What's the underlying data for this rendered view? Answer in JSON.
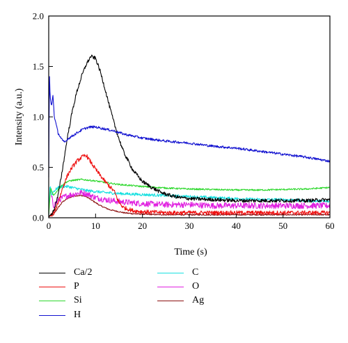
{
  "chart_data": {
    "type": "line",
    "xlabel": "Time (s)",
    "ylabel": "Intensity (a.u.)",
    "xlim": [
      0,
      60
    ],
    "ylim": [
      0,
      2.0
    ],
    "x_ticks": [
      0,
      10,
      20,
      30,
      40,
      50,
      60
    ],
    "y_ticks": [
      0.0,
      0.5,
      1.0,
      1.5,
      2.0
    ],
    "x_tick_labels": [
      "0",
      "10",
      "20",
      "30",
      "40",
      "50",
      "60"
    ],
    "y_tick_labels": [
      "0.0",
      "0.5",
      "1.0",
      "1.5",
      "2.0"
    ],
    "grid": false,
    "legend_position": "bottom",
    "series": [
      {
        "name": "Ca/2",
        "color": "#000000",
        "x": [
          0,
          1,
          2,
          3,
          4,
          5,
          6,
          7,
          8,
          9,
          10,
          11,
          12,
          13,
          14,
          15,
          16,
          18,
          20,
          22,
          24,
          26,
          28,
          30,
          35,
          40,
          45,
          50,
          55,
          60
        ],
        "y": [
          0.01,
          0.06,
          0.22,
          0.5,
          0.8,
          1.05,
          1.25,
          1.4,
          1.52,
          1.6,
          1.58,
          1.45,
          1.28,
          1.1,
          0.93,
          0.78,
          0.65,
          0.47,
          0.36,
          0.3,
          0.25,
          0.22,
          0.2,
          0.19,
          0.18,
          0.17,
          0.17,
          0.17,
          0.17,
          0.18
        ]
      },
      {
        "name": "P",
        "color": "#ee1111",
        "x": [
          0,
          1,
          2,
          3,
          4,
          5,
          6,
          7,
          8,
          9,
          10,
          11,
          12,
          13,
          14,
          15,
          16,
          18,
          20,
          25,
          30,
          40,
          50,
          60
        ],
        "y": [
          0.01,
          0.04,
          0.15,
          0.3,
          0.42,
          0.5,
          0.56,
          0.6,
          0.62,
          0.55,
          0.48,
          0.42,
          0.36,
          0.31,
          0.26,
          0.15,
          0.1,
          0.07,
          0.06,
          0.05,
          0.05,
          0.05,
          0.05,
          0.05
        ]
      },
      {
        "name": "Si",
        "color": "#2ed82e",
        "x": [
          0,
          0.4,
          1,
          2,
          3,
          4,
          5,
          6,
          7,
          8,
          10,
          12,
          15,
          20,
          25,
          30,
          35,
          40,
          45,
          50,
          55,
          60
        ],
        "y": [
          0.02,
          0.3,
          0.22,
          0.28,
          0.33,
          0.36,
          0.37,
          0.375,
          0.38,
          0.375,
          0.365,
          0.35,
          0.33,
          0.31,
          0.295,
          0.285,
          0.28,
          0.275,
          0.275,
          0.28,
          0.285,
          0.3
        ]
      },
      {
        "name": "H",
        "color": "#1212d0",
        "x": [
          0,
          0.15,
          0.3,
          0.6,
          0.9,
          1.2,
          1.6,
          2,
          2.5,
          3,
          3.5,
          4,
          5,
          6,
          7,
          8,
          9,
          10,
          12,
          14,
          16,
          20,
          25,
          30,
          35,
          40,
          45,
          50,
          55,
          60
        ],
        "y": [
          0.4,
          1.45,
          1.2,
          1.1,
          1.22,
          1.0,
          0.92,
          0.84,
          0.8,
          0.76,
          0.75,
          0.78,
          0.81,
          0.84,
          0.87,
          0.89,
          0.9,
          0.9,
          0.88,
          0.86,
          0.83,
          0.79,
          0.76,
          0.74,
          0.71,
          0.69,
          0.66,
          0.63,
          0.6,
          0.56
        ]
      },
      {
        "name": "C",
        "color": "#17e0e0",
        "x": [
          0,
          0.3,
          0.6,
          1,
          2,
          3,
          4,
          5,
          6,
          7,
          8,
          9,
          10,
          12,
          15,
          20,
          25,
          30,
          35,
          40,
          45,
          50,
          55,
          60
        ],
        "y": [
          0.03,
          0.33,
          0.22,
          0.26,
          0.3,
          0.31,
          0.31,
          0.3,
          0.29,
          0.28,
          0.27,
          0.265,
          0.26,
          0.25,
          0.24,
          0.23,
          0.22,
          0.21,
          0.2,
          0.19,
          0.18,
          0.18,
          0.17,
          0.16
        ]
      },
      {
        "name": "O",
        "color": "#e020e0",
        "x": [
          0,
          0.3,
          1,
          2,
          3,
          4,
          5,
          6,
          7,
          8,
          9,
          10,
          12,
          15,
          20,
          25,
          30,
          35,
          40,
          45,
          50,
          55,
          60
        ],
        "y": [
          0.02,
          0.28,
          0.12,
          0.17,
          0.2,
          0.22,
          0.23,
          0.24,
          0.25,
          0.24,
          0.22,
          0.2,
          0.18,
          0.16,
          0.14,
          0.13,
          0.13,
          0.12,
          0.12,
          0.12,
          0.12,
          0.12,
          0.12
        ]
      },
      {
        "name": "Ag",
        "color": "#8b1010",
        "x": [
          0,
          1,
          2,
          3,
          4,
          5,
          6,
          7,
          8,
          9,
          10,
          11,
          12,
          13,
          14,
          16,
          18,
          20,
          25,
          30,
          40,
          50,
          60
        ],
        "y": [
          0.01,
          0.03,
          0.1,
          0.16,
          0.19,
          0.21,
          0.22,
          0.22,
          0.21,
          0.18,
          0.15,
          0.12,
          0.1,
          0.08,
          0.07,
          0.05,
          0.04,
          0.035,
          0.03,
          0.03,
          0.03,
          0.03,
          0.03
        ]
      }
    ]
  }
}
